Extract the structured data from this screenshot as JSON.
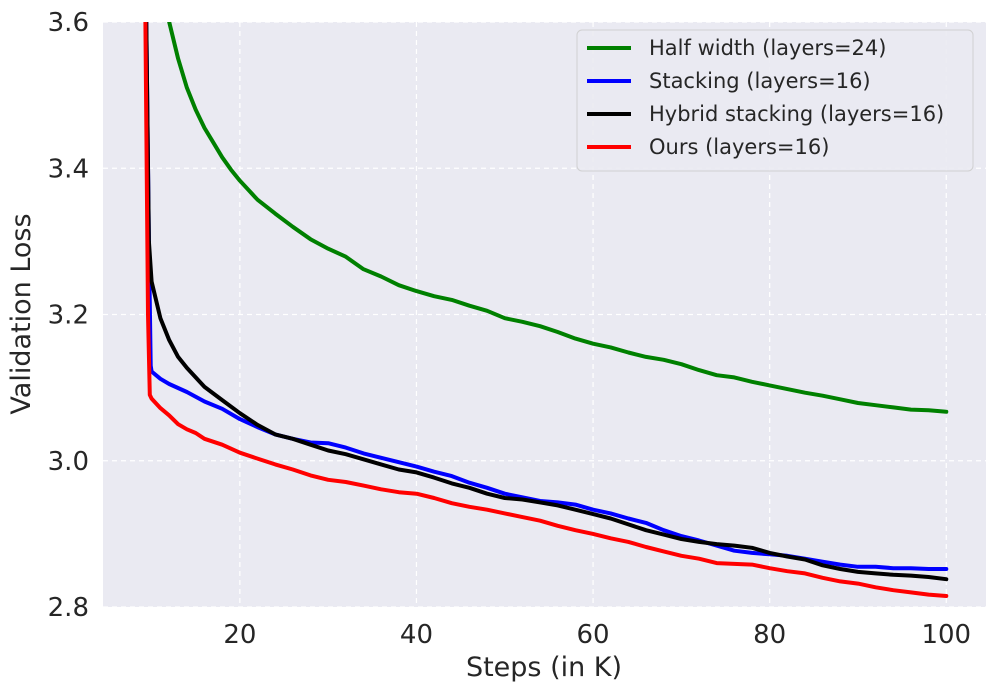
{
  "chart_data": {
    "type": "line",
    "title": "",
    "xlabel": "Steps (in K)",
    "ylabel": "Validation Loss",
    "xlim": [
      4.5,
      104.5
    ],
    "ylim": [
      2.8,
      3.6
    ],
    "xticks": [
      20,
      40,
      60,
      80,
      100
    ],
    "yticks": [
      2.8,
      3.0,
      3.2,
      3.4,
      3.6
    ],
    "xtick_labels": [
      "20",
      "40",
      "60",
      "80",
      "100"
    ],
    "ytick_labels": [
      "2.8",
      "3.0",
      "3.2",
      "3.4",
      "3.6"
    ],
    "grid": true,
    "background": "#eaeaf2",
    "legend_position": "top-right",
    "series": [
      {
        "name": "Half width (layers=24)",
        "color": "#008000",
        "points": [
          [
            12,
            3.6
          ],
          [
            13,
            3.55
          ],
          [
            14,
            3.51
          ],
          [
            15,
            3.48
          ],
          [
            16,
            3.455
          ],
          [
            17,
            3.435
          ],
          [
            18,
            3.415
          ],
          [
            19,
            3.398
          ],
          [
            20,
            3.383
          ],
          [
            22,
            3.357
          ],
          [
            24,
            3.338
          ],
          [
            26,
            3.32
          ],
          [
            28,
            3.303
          ],
          [
            30,
            3.29
          ],
          [
            32,
            3.279
          ],
          [
            34,
            3.262
          ],
          [
            36,
            3.252
          ],
          [
            38,
            3.24
          ],
          [
            40,
            3.232
          ],
          [
            42,
            3.225
          ],
          [
            44,
            3.22
          ],
          [
            46,
            3.212
          ],
          [
            48,
            3.205
          ],
          [
            50,
            3.195
          ],
          [
            52,
            3.19
          ],
          [
            54,
            3.184
          ],
          [
            56,
            3.176
          ],
          [
            58,
            3.167
          ],
          [
            60,
            3.16
          ],
          [
            62,
            3.155
          ],
          [
            64,
            3.148
          ],
          [
            66,
            3.142
          ],
          [
            68,
            3.138
          ],
          [
            70,
            3.132
          ],
          [
            72,
            3.124
          ],
          [
            74,
            3.117
          ],
          [
            76,
            3.114
          ],
          [
            78,
            3.108
          ],
          [
            80,
            3.103
          ],
          [
            82,
            3.098
          ],
          [
            84,
            3.093
          ],
          [
            86,
            3.089
          ],
          [
            88,
            3.084
          ],
          [
            90,
            3.079
          ],
          [
            92,
            3.076
          ],
          [
            94,
            3.073
          ],
          [
            96,
            3.07
          ],
          [
            98,
            3.069
          ],
          [
            100,
            3.067
          ]
        ]
      },
      {
        "name": "Stacking (layers=16)",
        "color": "#0000ff",
        "points": [
          [
            9.4,
            3.6
          ],
          [
            9.7,
            3.3
          ],
          [
            9.9,
            3.13
          ],
          [
            10,
            3.122
          ],
          [
            11,
            3.112
          ],
          [
            12,
            3.105
          ],
          [
            14,
            3.094
          ],
          [
            16,
            3.081
          ],
          [
            18,
            3.071
          ],
          [
            20,
            3.057
          ],
          [
            22,
            3.046
          ],
          [
            24,
            3.036
          ],
          [
            26,
            3.03
          ],
          [
            28,
            3.025
          ],
          [
            30,
            3.024
          ],
          [
            32,
            3.018
          ],
          [
            34,
            3.01
          ],
          [
            36,
            3.004
          ],
          [
            38,
            2.998
          ],
          [
            40,
            2.992
          ],
          [
            42,
            2.985
          ],
          [
            44,
            2.979
          ],
          [
            46,
            2.97
          ],
          [
            48,
            2.963
          ],
          [
            50,
            2.955
          ],
          [
            52,
            2.95
          ],
          [
            54,
            2.945
          ],
          [
            56,
            2.943
          ],
          [
            58,
            2.94
          ],
          [
            60,
            2.933
          ],
          [
            62,
            2.928
          ],
          [
            64,
            2.921
          ],
          [
            66,
            2.915
          ],
          [
            68,
            2.905
          ],
          [
            70,
            2.897
          ],
          [
            72,
            2.891
          ],
          [
            74,
            2.884
          ],
          [
            76,
            2.877
          ],
          [
            78,
            2.874
          ],
          [
            80,
            2.872
          ],
          [
            82,
            2.87
          ],
          [
            84,
            2.866
          ],
          [
            86,
            2.862
          ],
          [
            88,
            2.858
          ],
          [
            90,
            2.855
          ],
          [
            92,
            2.855
          ],
          [
            94,
            2.853
          ],
          [
            96,
            2.853
          ],
          [
            98,
            2.852
          ],
          [
            100,
            2.852
          ]
        ]
      },
      {
        "name": "Hybrid stacking (layers=16)",
        "color": "#000000",
        "points": [
          [
            9.4,
            3.6
          ],
          [
            9.7,
            3.3
          ],
          [
            10,
            3.245
          ],
          [
            11,
            3.195
          ],
          [
            12,
            3.165
          ],
          [
            13,
            3.142
          ],
          [
            14,
            3.127
          ],
          [
            15,
            3.114
          ],
          [
            16,
            3.101
          ],
          [
            18,
            3.083
          ],
          [
            20,
            3.065
          ],
          [
            22,
            3.049
          ],
          [
            24,
            3.036
          ],
          [
            26,
            3.03
          ],
          [
            28,
            3.022
          ],
          [
            30,
            3.014
          ],
          [
            32,
            3.009
          ],
          [
            34,
            3.002
          ],
          [
            36,
            2.995
          ],
          [
            38,
            2.988
          ],
          [
            40,
            2.984
          ],
          [
            42,
            2.977
          ],
          [
            44,
            2.969
          ],
          [
            46,
            2.963
          ],
          [
            48,
            2.955
          ],
          [
            50,
            2.949
          ],
          [
            52,
            2.947
          ],
          [
            54,
            2.943
          ],
          [
            56,
            2.939
          ],
          [
            58,
            2.933
          ],
          [
            60,
            2.927
          ],
          [
            62,
            2.921
          ],
          [
            64,
            2.913
          ],
          [
            66,
            2.905
          ],
          [
            68,
            2.899
          ],
          [
            70,
            2.893
          ],
          [
            72,
            2.889
          ],
          [
            74,
            2.886
          ],
          [
            76,
            2.884
          ],
          [
            78,
            2.881
          ],
          [
            80,
            2.874
          ],
          [
            82,
            2.869
          ],
          [
            84,
            2.865
          ],
          [
            86,
            2.857
          ],
          [
            88,
            2.852
          ],
          [
            90,
            2.848
          ],
          [
            92,
            2.846
          ],
          [
            94,
            2.844
          ],
          [
            96,
            2.843
          ],
          [
            98,
            2.841
          ],
          [
            100,
            2.838
          ]
        ]
      },
      {
        "name": "Ours (layers=16)",
        "color": "#ff0000",
        "points": [
          [
            9.3,
            3.6
          ],
          [
            9.6,
            3.2
          ],
          [
            9.8,
            3.09
          ],
          [
            10,
            3.085
          ],
          [
            11,
            3.072
          ],
          [
            12,
            3.062
          ],
          [
            13,
            3.05
          ],
          [
            14,
            3.043
          ],
          [
            15,
            3.038
          ],
          [
            16,
            3.03
          ],
          [
            18,
            3.022
          ],
          [
            20,
            3.011
          ],
          [
            22,
            3.003
          ],
          [
            24,
            2.995
          ],
          [
            26,
            2.988
          ],
          [
            28,
            2.98
          ],
          [
            30,
            2.974
          ],
          [
            32,
            2.971
          ],
          [
            34,
            2.966
          ],
          [
            36,
            2.961
          ],
          [
            38,
            2.957
          ],
          [
            40,
            2.955
          ],
          [
            42,
            2.949
          ],
          [
            44,
            2.942
          ],
          [
            46,
            2.937
          ],
          [
            48,
            2.933
          ],
          [
            50,
            2.928
          ],
          [
            52,
            2.923
          ],
          [
            54,
            2.918
          ],
          [
            56,
            2.911
          ],
          [
            58,
            2.905
          ],
          [
            60,
            2.9
          ],
          [
            62,
            2.894
          ],
          [
            64,
            2.889
          ],
          [
            66,
            2.882
          ],
          [
            68,
            2.876
          ],
          [
            70,
            2.87
          ],
          [
            72,
            2.866
          ],
          [
            74,
            2.86
          ],
          [
            76,
            2.859
          ],
          [
            78,
            2.858
          ],
          [
            80,
            2.853
          ],
          [
            82,
            2.849
          ],
          [
            84,
            2.846
          ],
          [
            86,
            2.84
          ],
          [
            88,
            2.835
          ],
          [
            90,
            2.832
          ],
          [
            92,
            2.827
          ],
          [
            94,
            2.823
          ],
          [
            96,
            2.82
          ],
          [
            98,
            2.817
          ],
          [
            100,
            2.815
          ]
        ]
      }
    ]
  }
}
